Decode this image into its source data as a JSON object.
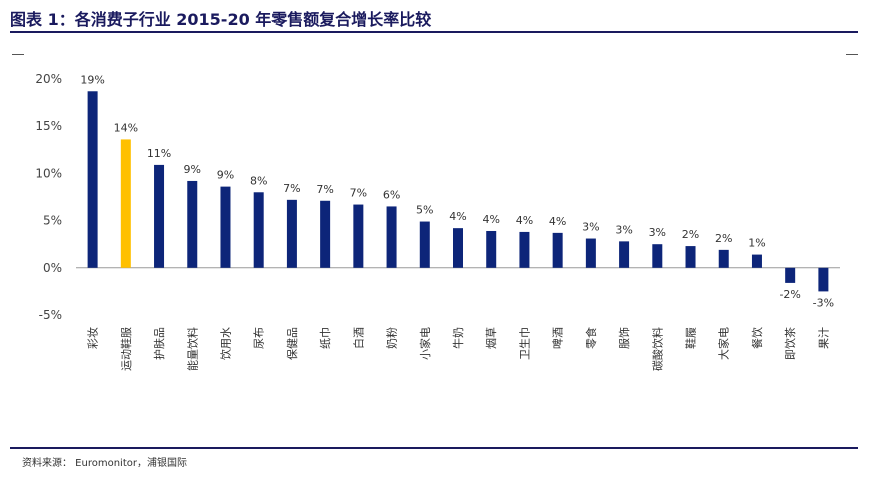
{
  "title": "图表 1：各消费子行业 2015-20 年零售额复合增长率比较",
  "source": "资料来源： Euromonitor，浦银国际",
  "colors": {
    "default_bar": "#0d2579",
    "highlight_bar": "#ffc000",
    "title": "#1a1a5e"
  },
  "chart_data": {
    "type": "bar",
    "categories": [
      "彩妆",
      "运动鞋服",
      "护肤品",
      "能量饮料",
      "饮用水",
      "尿布",
      "保健品",
      "纸巾",
      "白酒",
      "奶粉",
      "小家电",
      "牛奶",
      "烟草",
      "卫生巾",
      "啤酒",
      "零食",
      "服饰",
      "碳酸饮料",
      "鞋履",
      "大家电",
      "餐饮",
      "即饮茶",
      "果汁"
    ],
    "values": [
      0.187,
      0.136,
      0.109,
      0.092,
      0.086,
      0.08,
      0.072,
      0.071,
      0.067,
      0.065,
      0.049,
      0.042,
      0.039,
      0.038,
      0.037,
      0.031,
      0.028,
      0.025,
      0.023,
      0.019,
      0.014,
      -0.016,
      -0.025
    ],
    "data_labels": [
      "19%",
      "14%",
      "11%",
      "9%",
      "9%",
      "8%",
      "7%",
      "7%",
      "7%",
      "6%",
      "5%",
      "4%",
      "4%",
      "4%",
      "4%",
      "3%",
      "3%",
      "3%",
      "2%",
      "2%",
      "1%",
      "-2%",
      "-3%"
    ],
    "highlight_index": 1,
    "yticks": [
      "20%",
      "15%",
      "10%",
      "5%",
      "0%",
      "-5%"
    ],
    "ytick_values": [
      0.2,
      0.15,
      0.1,
      0.05,
      0.0,
      -0.05
    ],
    "ylim": [
      -0.05,
      0.2
    ],
    "grid": false,
    "legend": "none"
  }
}
